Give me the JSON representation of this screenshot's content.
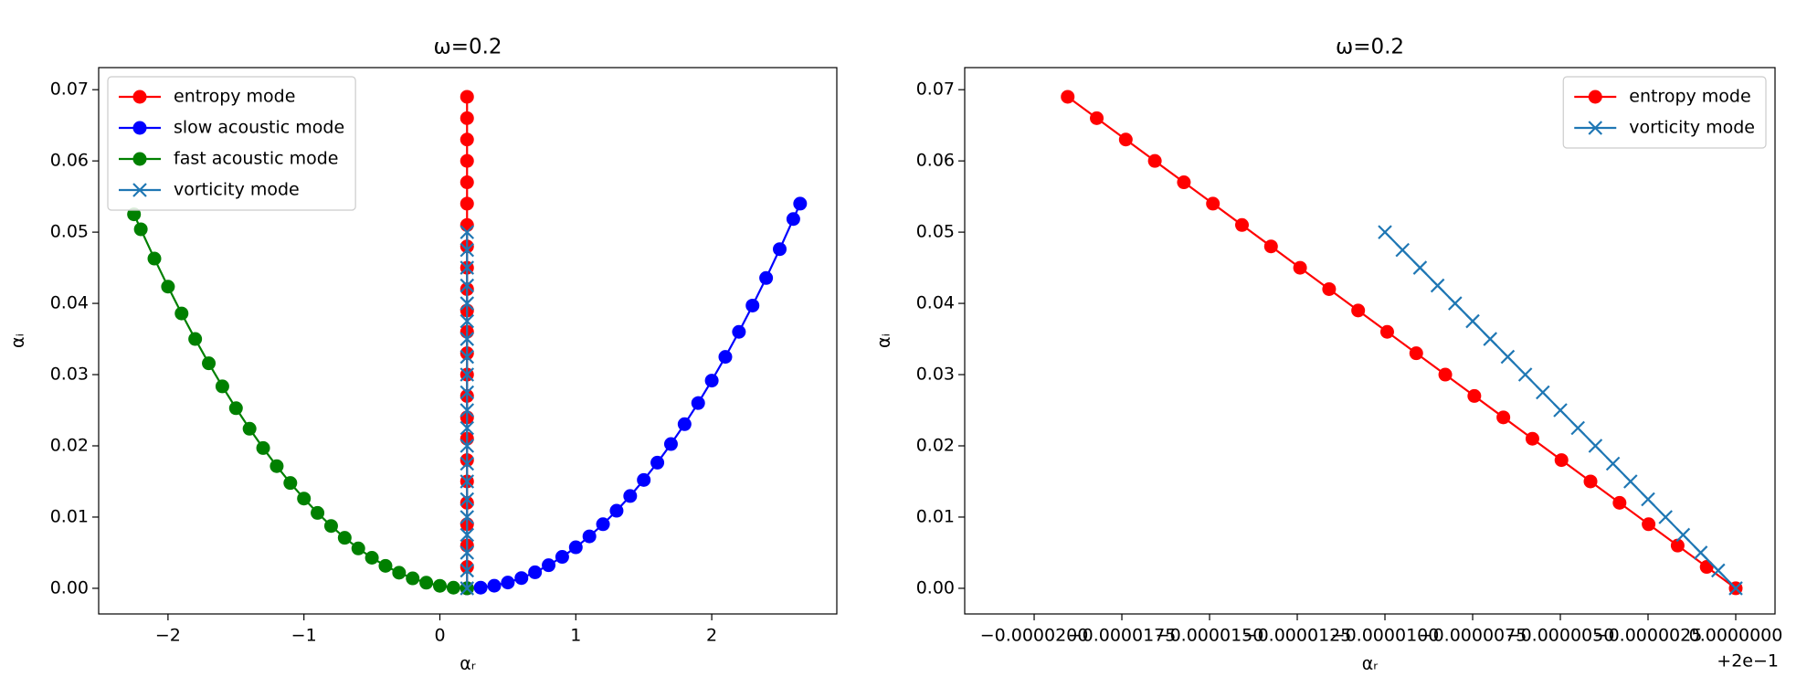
{
  "chart_data": [
    {
      "type": "line",
      "title": "ω=0.2",
      "xlabel": "αᵣ",
      "ylabel": "αᵢ",
      "xlim": [
        -2.51,
        2.92
      ],
      "ylim": [
        -0.0036,
        0.0731
      ],
      "xticks": [
        {
          "value": -2,
          "label": "−2"
        },
        {
          "value": -1,
          "label": "−1"
        },
        0,
        1,
        2
      ],
      "yticks": [
        {
          "value": 0,
          "label": "0.00"
        },
        0.01,
        0.02,
        0.03,
        0.04,
        0.05,
        0.06,
        0.07
      ],
      "legend": "upper left",
      "series": [
        {
          "name": "entropy mode",
          "color": "#ff0000",
          "marker": "o",
          "x": [
            0.2,
            0.199999172,
            0.199998344,
            0.199997516,
            0.199996688,
            0.19999586,
            0.199995032,
            0.199994204,
            0.199993376,
            0.199992548,
            0.19999172,
            0.199990892,
            0.199990064,
            0.199989236,
            0.199988408,
            0.19998758,
            0.199986752,
            0.199985924,
            0.199985096,
            0.199984268,
            0.19998344,
            0.199982612,
            0.199981784,
            0.199980956
          ],
          "values": [
            0,
            0.003,
            0.006,
            0.009,
            0.012,
            0.015,
            0.018,
            0.021,
            0.024,
            0.027,
            0.03,
            0.033,
            0.036,
            0.039,
            0.042,
            0.045,
            0.048,
            0.051,
            0.054,
            0.057,
            0.06,
            0.063,
            0.066,
            0.069
          ]
        },
        {
          "name": "slow acoustic mode",
          "color": "#0000ff",
          "marker": "o",
          "x": [
            0.2,
            0.3,
            0.4,
            0.5,
            0.6,
            0.7,
            0.8,
            0.9,
            1.0,
            1.1,
            1.2,
            1.3,
            1.4,
            1.5,
            1.6,
            1.7,
            1.8,
            1.9,
            2.0,
            2.1,
            2.2,
            2.3,
            2.4,
            2.5,
            2.6,
            2.65
          ],
          "values": [
            0,
            9e-05,
            0.00036,
            0.00081,
            0.00144,
            0.00225,
            0.00324,
            0.00441,
            0.00576,
            0.00729,
            0.009,
            0.01089,
            0.01296,
            0.01521,
            0.01764,
            0.02025,
            0.02304,
            0.02601,
            0.02916,
            0.03249,
            0.036,
            0.03969,
            0.04356,
            0.04761,
            0.05184,
            0.054
          ]
        },
        {
          "name": "fast acoustic mode",
          "color": "#008000",
          "marker": "o",
          "x": [
            0.2,
            0.1,
            0,
            -0.1,
            -0.2,
            -0.3,
            -0.4,
            -0.5,
            -0.6,
            -0.7,
            -0.8,
            -0.9,
            -1.0,
            -1.1,
            -1.2,
            -1.3,
            -1.4,
            -1.5,
            -1.6,
            -1.7,
            -1.8,
            -1.9,
            -2.0,
            -2.1,
            -2.2,
            -2.25
          ],
          "values": [
            0,
            8.75e-05,
            0.00035,
            0.0007875,
            0.0014,
            0.0021875,
            0.00315,
            0.0042875,
            0.0056,
            0.0070875,
            0.00875,
            0.0105875,
            0.0126,
            0.0147875,
            0.01715,
            0.0196875,
            0.0224,
            0.0252875,
            0.02835,
            0.0315875,
            0.035,
            0.0385875,
            0.04235,
            0.0462875,
            0.0504,
            0.0525
          ]
        },
        {
          "name": "vorticity mode",
          "color": "#1f77b4",
          "marker": "x",
          "x": [
            0.2,
            0.1999995,
            0.199999,
            0.1999985,
            0.199998,
            0.1999975,
            0.199997,
            0.1999965,
            0.199996,
            0.1999955,
            0.199995,
            0.1999945,
            0.199994,
            0.1999935,
            0.199993,
            0.1999925,
            0.199992,
            0.1999915,
            0.199991,
            0.1999905,
            0.19999
          ],
          "values": [
            0,
            0.0025,
            0.005,
            0.0075,
            0.01,
            0.0125,
            0.015,
            0.0175,
            0.02,
            0.0225,
            0.025,
            0.0275,
            0.03,
            0.0325,
            0.035,
            0.0375,
            0.04,
            0.0425,
            0.045,
            0.0475,
            0.05
          ]
        }
      ]
    },
    {
      "type": "line",
      "title": "ω=0.2",
      "xlabel": "αᵣ",
      "ylabel": "αᵢ",
      "x_offset_text": "+2e−1",
      "xlim": [
        0.19997802,
        0.20000112
      ],
      "ylim": [
        -0.0036,
        0.0731
      ],
      "xticks": [
        {
          "value": 0.19998,
          "label": "−0.0000200"
        },
        {
          "value": 0.1999825,
          "label": "−0.0000175"
        },
        {
          "value": 0.199985,
          "label": "−0.0000150"
        },
        {
          "value": 0.1999875,
          "label": "−0.0000125"
        },
        {
          "value": 0.19999,
          "label": "−0.0000100"
        },
        {
          "value": 0.1999925,
          "label": "−0.0000075"
        },
        {
          "value": 0.199995,
          "label": "−0.0000050"
        },
        {
          "value": 0.1999975,
          "label": "−0.0000025"
        },
        {
          "value": 0.2,
          "label": "0.0000000"
        }
      ],
      "yticks": [
        {
          "value": 0,
          "label": "0.00"
        },
        0.01,
        0.02,
        0.03,
        0.04,
        0.05,
        0.06,
        0.07
      ],
      "legend": "upper right",
      "series": [
        {
          "name": "entropy mode",
          "color": "#ff0000",
          "marker": "o",
          "x": [
            0.2,
            0.199999172,
            0.199998344,
            0.199997516,
            0.199996688,
            0.19999586,
            0.199995032,
            0.199994204,
            0.199993376,
            0.199992548,
            0.19999172,
            0.199990892,
            0.199990064,
            0.199989236,
            0.199988408,
            0.19998758,
            0.199986752,
            0.199985924,
            0.199985096,
            0.199984268,
            0.19998344,
            0.199982612,
            0.199981784,
            0.199980956
          ],
          "values": [
            0,
            0.003,
            0.006,
            0.009,
            0.012,
            0.015,
            0.018,
            0.021,
            0.024,
            0.027,
            0.03,
            0.033,
            0.036,
            0.039,
            0.042,
            0.045,
            0.048,
            0.051,
            0.054,
            0.057,
            0.06,
            0.063,
            0.066,
            0.069
          ]
        },
        {
          "name": "vorticity mode",
          "color": "#1f77b4",
          "marker": "x",
          "x": [
            0.2,
            0.1999995,
            0.199999,
            0.1999985,
            0.199998,
            0.1999975,
            0.199997,
            0.1999965,
            0.199996,
            0.1999955,
            0.199995,
            0.1999945,
            0.199994,
            0.1999935,
            0.199993,
            0.1999925,
            0.199992,
            0.1999915,
            0.199991,
            0.1999905,
            0.19999
          ],
          "values": [
            0,
            0.0025,
            0.005,
            0.0075,
            0.01,
            0.0125,
            0.015,
            0.0175,
            0.02,
            0.0225,
            0.025,
            0.0275,
            0.03,
            0.0325,
            0.035,
            0.0375,
            0.04,
            0.0425,
            0.045,
            0.0475,
            0.05
          ]
        }
      ]
    }
  ]
}
